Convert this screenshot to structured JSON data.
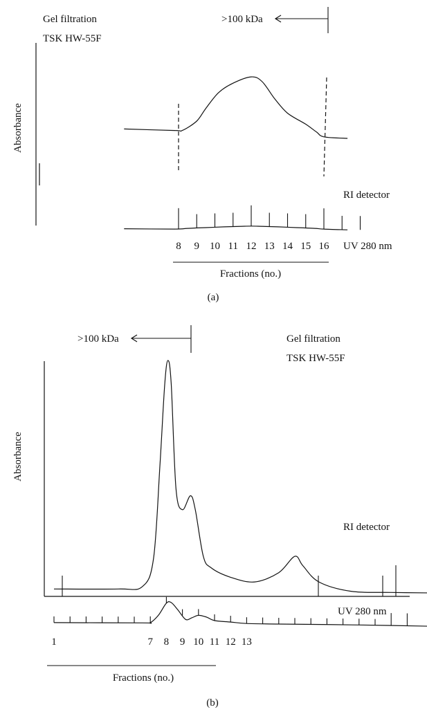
{
  "chart_data": [
    {
      "type": "line",
      "panel_label": "(a)",
      "method_lines": [
        "Gel filtration",
        "TSK HW-55F"
      ],
      "ylabel": "Absorbance",
      "xlabel": "Fractions (no.)",
      "size_marker": ">100 kDa",
      "series": [
        {
          "name": "RI detector",
          "x": [
            5,
            7.8,
            8.2,
            9.0,
            9.5,
            10.2,
            11.0,
            12.0,
            12.6,
            13.3,
            14.0,
            15.0,
            15.6,
            16.0,
            17.3
          ],
          "values": [
            0.63,
            0.62,
            0.62,
            0.68,
            0.76,
            0.86,
            0.92,
            0.96,
            0.93,
            0.82,
            0.73,
            0.66,
            0.61,
            0.58,
            0.57
          ]
        },
        {
          "name": "UV 280 nm",
          "x": [
            5,
            7.8,
            8.5,
            9.5,
            10.5,
            11.5,
            12.0,
            12.5,
            13.5,
            14.5,
            15.5,
            16.0,
            17.3
          ],
          "values": [
            0.1,
            0.09,
            0.11,
            0.13,
            0.15,
            0.165,
            0.17,
            0.165,
            0.15,
            0.13,
            0.11,
            0.09,
            0.07
          ]
        }
      ],
      "fraction_ticks": [
        "8",
        "9",
        "10",
        "11",
        "12",
        "13",
        "14",
        "15",
        "16"
      ],
      "fraction_tick_values": [
        8,
        9,
        10,
        11,
        12,
        13,
        14,
        15,
        16
      ]
    },
    {
      "type": "line",
      "panel_label": "(b)",
      "method_lines": [
        "Gel filtration",
        "TSK HW-55F"
      ],
      "ylabel": "Absorbance",
      "xlabel": "Fractions (no.)",
      "size_marker": ">100 kDa",
      "series": [
        {
          "name": "RI detector",
          "x": [
            1,
            5,
            6.5,
            7.2,
            7.6,
            7.9,
            8.1,
            8.3,
            8.6,
            9.0,
            9.5,
            9.8,
            10.3,
            10.8,
            12,
            13.5,
            15,
            16,
            16.5,
            17.5,
            19.5,
            22,
            24.5,
            25
          ],
          "values": [
            0.02,
            0.02,
            0.03,
            0.15,
            0.55,
            0.9,
            1.0,
            0.9,
            0.45,
            0.36,
            0.42,
            0.36,
            0.16,
            0.11,
            0.07,
            0.05,
            0.09,
            0.16,
            0.12,
            0.05,
            0.01,
            0.005,
            0.003,
            0.003
          ]
        },
        {
          "name": "UV 280 nm",
          "x": [
            1,
            6.5,
            7.0,
            7.5,
            8.0,
            8.3,
            8.7,
            9.2,
            9.6,
            10.0,
            10.5,
            11.0,
            12.0,
            13.0,
            15,
            20,
            25
          ],
          "values": [
            0.05,
            0.04,
            0.05,
            0.3,
            0.72,
            0.74,
            0.5,
            0.16,
            0.22,
            0.3,
            0.24,
            0.12,
            0.07,
            0.02,
            0.0,
            -0.03,
            -0.08
          ]
        }
      ],
      "fraction_ticks": [
        "1",
        "7",
        "8",
        "9",
        "10",
        "11",
        "12",
        "13"
      ],
      "fraction_tick_values": [
        1,
        7,
        8,
        9,
        10,
        11,
        12,
        13
      ]
    }
  ]
}
